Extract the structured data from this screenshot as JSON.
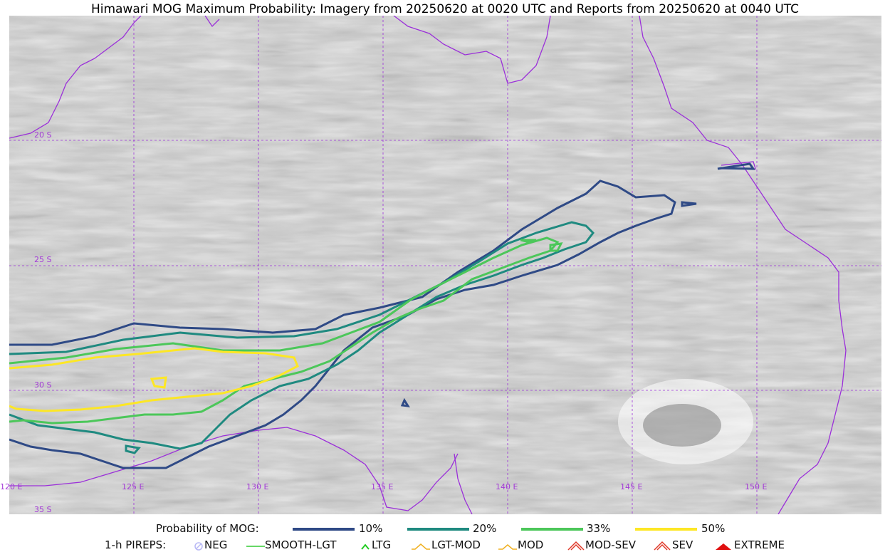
{
  "title": "Himawari MOG Maximum Probability: Imagery from 20250620 at 0020 UTC and Reports from 20250620 at 0040 UTC",
  "lat_labels": [
    "20 S",
    "25 S",
    "30 S",
    "35 S"
  ],
  "lon_labels": [
    "120 E",
    "125 E",
    "130 E",
    "135 E",
    "140 E",
    "145 E",
    "150 E"
  ],
  "colors": {
    "coast": "#9b30d9",
    "grid": "#9b30d9",
    "p10": "#2f4a86",
    "p20": "#1f8a80",
    "p33": "#4cc75a",
    "p50": "#fde725"
  },
  "legend": {
    "prob_label": "Probability of MOG:",
    "prob_items": [
      {
        "label": "10%",
        "color": "#2f4a86"
      },
      {
        "label": "20%",
        "color": "#1f8a80"
      },
      {
        "label": "33%",
        "color": "#4cc75a"
      },
      {
        "label": "50%",
        "color": "#fde725"
      }
    ],
    "pirep_label": "1-h PIREPS:",
    "pirep_items": [
      {
        "label": "NEG",
        "icon": "neg-icon",
        "color": "#b9b9f5"
      },
      {
        "label": "SMOOTH-LGT",
        "icon": "line-icon",
        "color": "#33cc33"
      },
      {
        "label": "LTG",
        "icon": "caret-icon",
        "color": "#22cc22"
      },
      {
        "label": "LGT-MOD",
        "icon": "hat-icon",
        "color": "#f0b020"
      },
      {
        "label": "MOD",
        "icon": "caret-icon",
        "color": "#f0b020"
      },
      {
        "label": "MOD-SEV",
        "icon": "double-hat-icon",
        "color": "#e03a2a"
      },
      {
        "label": "SEV",
        "icon": "double-hat-icon",
        "color": "#e03a2a"
      },
      {
        "label": "EXTREME",
        "icon": "filled-hat-icon",
        "color": "#e01010"
      }
    ]
  }
}
